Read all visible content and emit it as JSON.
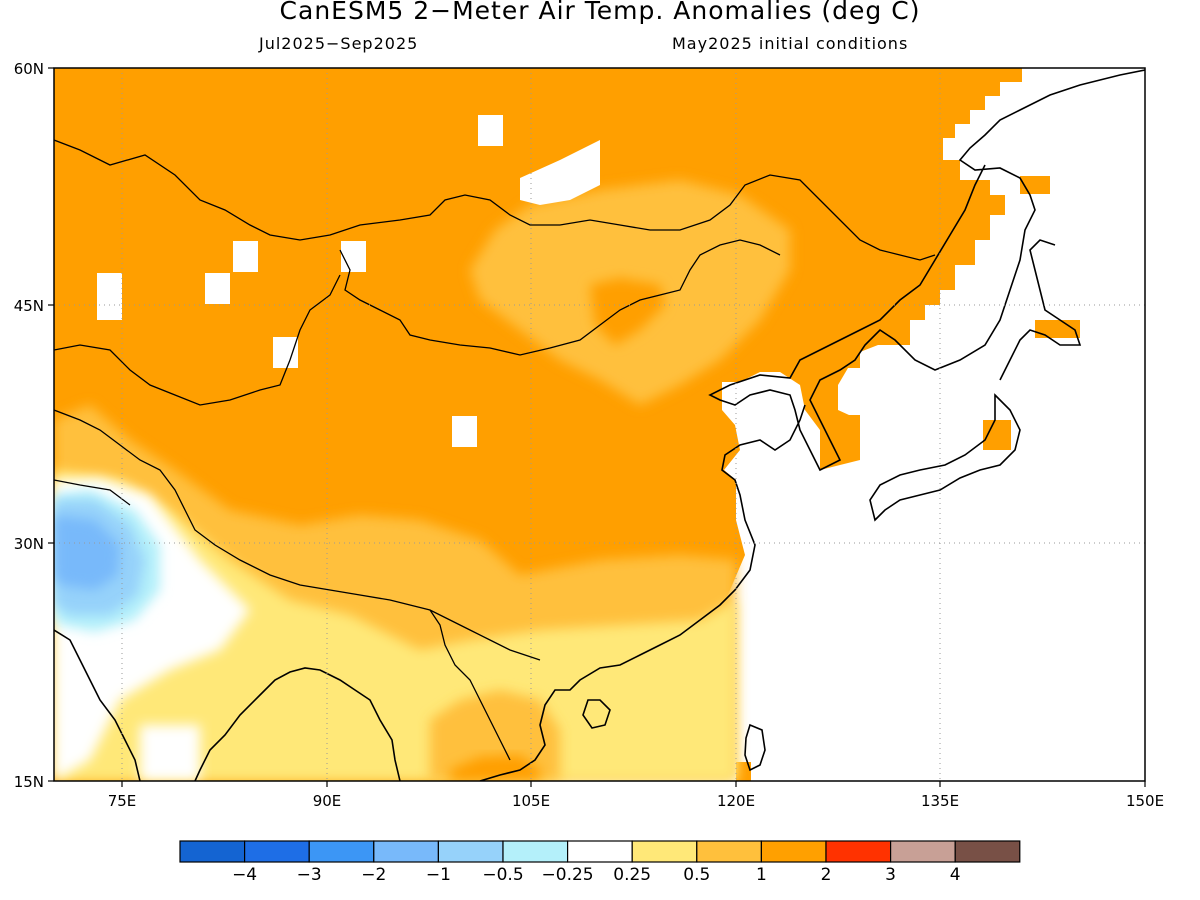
{
  "figure": {
    "title": "CanESM5 2−Meter Air Temp. Anomalies (deg C)",
    "period": "Jul2025−Sep2025",
    "initial_conditions": "May2025 initial conditions"
  },
  "map": {
    "lon_range": [
      70,
      150
    ],
    "lat_range": [
      15,
      60
    ],
    "lat_ticks": [
      "15N",
      "30N",
      "45N",
      "60N"
    ],
    "lon_ticks": [
      "75E",
      "90E",
      "105E",
      "120E",
      "135E",
      "150E"
    ],
    "grid": "dotted",
    "land_default_color": "#ff9f00"
  },
  "colorbar": {
    "colors": [
      "#1464d2",
      "#1e6ee6",
      "#3c96f5",
      "#78b9fa",
      "#96d2fa",
      "#b4f0fa",
      "#ffffff",
      "#ffe878",
      "#ffc03c",
      "#ffa000",
      "#ff3200",
      "#c8a096",
      "#785046"
    ],
    "labels": [
      "−4",
      "−3",
      "−2",
      "−1",
      "−0.5",
      "−0.25",
      "0.25",
      "0.5",
      "1",
      "2",
      "3",
      "4"
    ]
  }
}
